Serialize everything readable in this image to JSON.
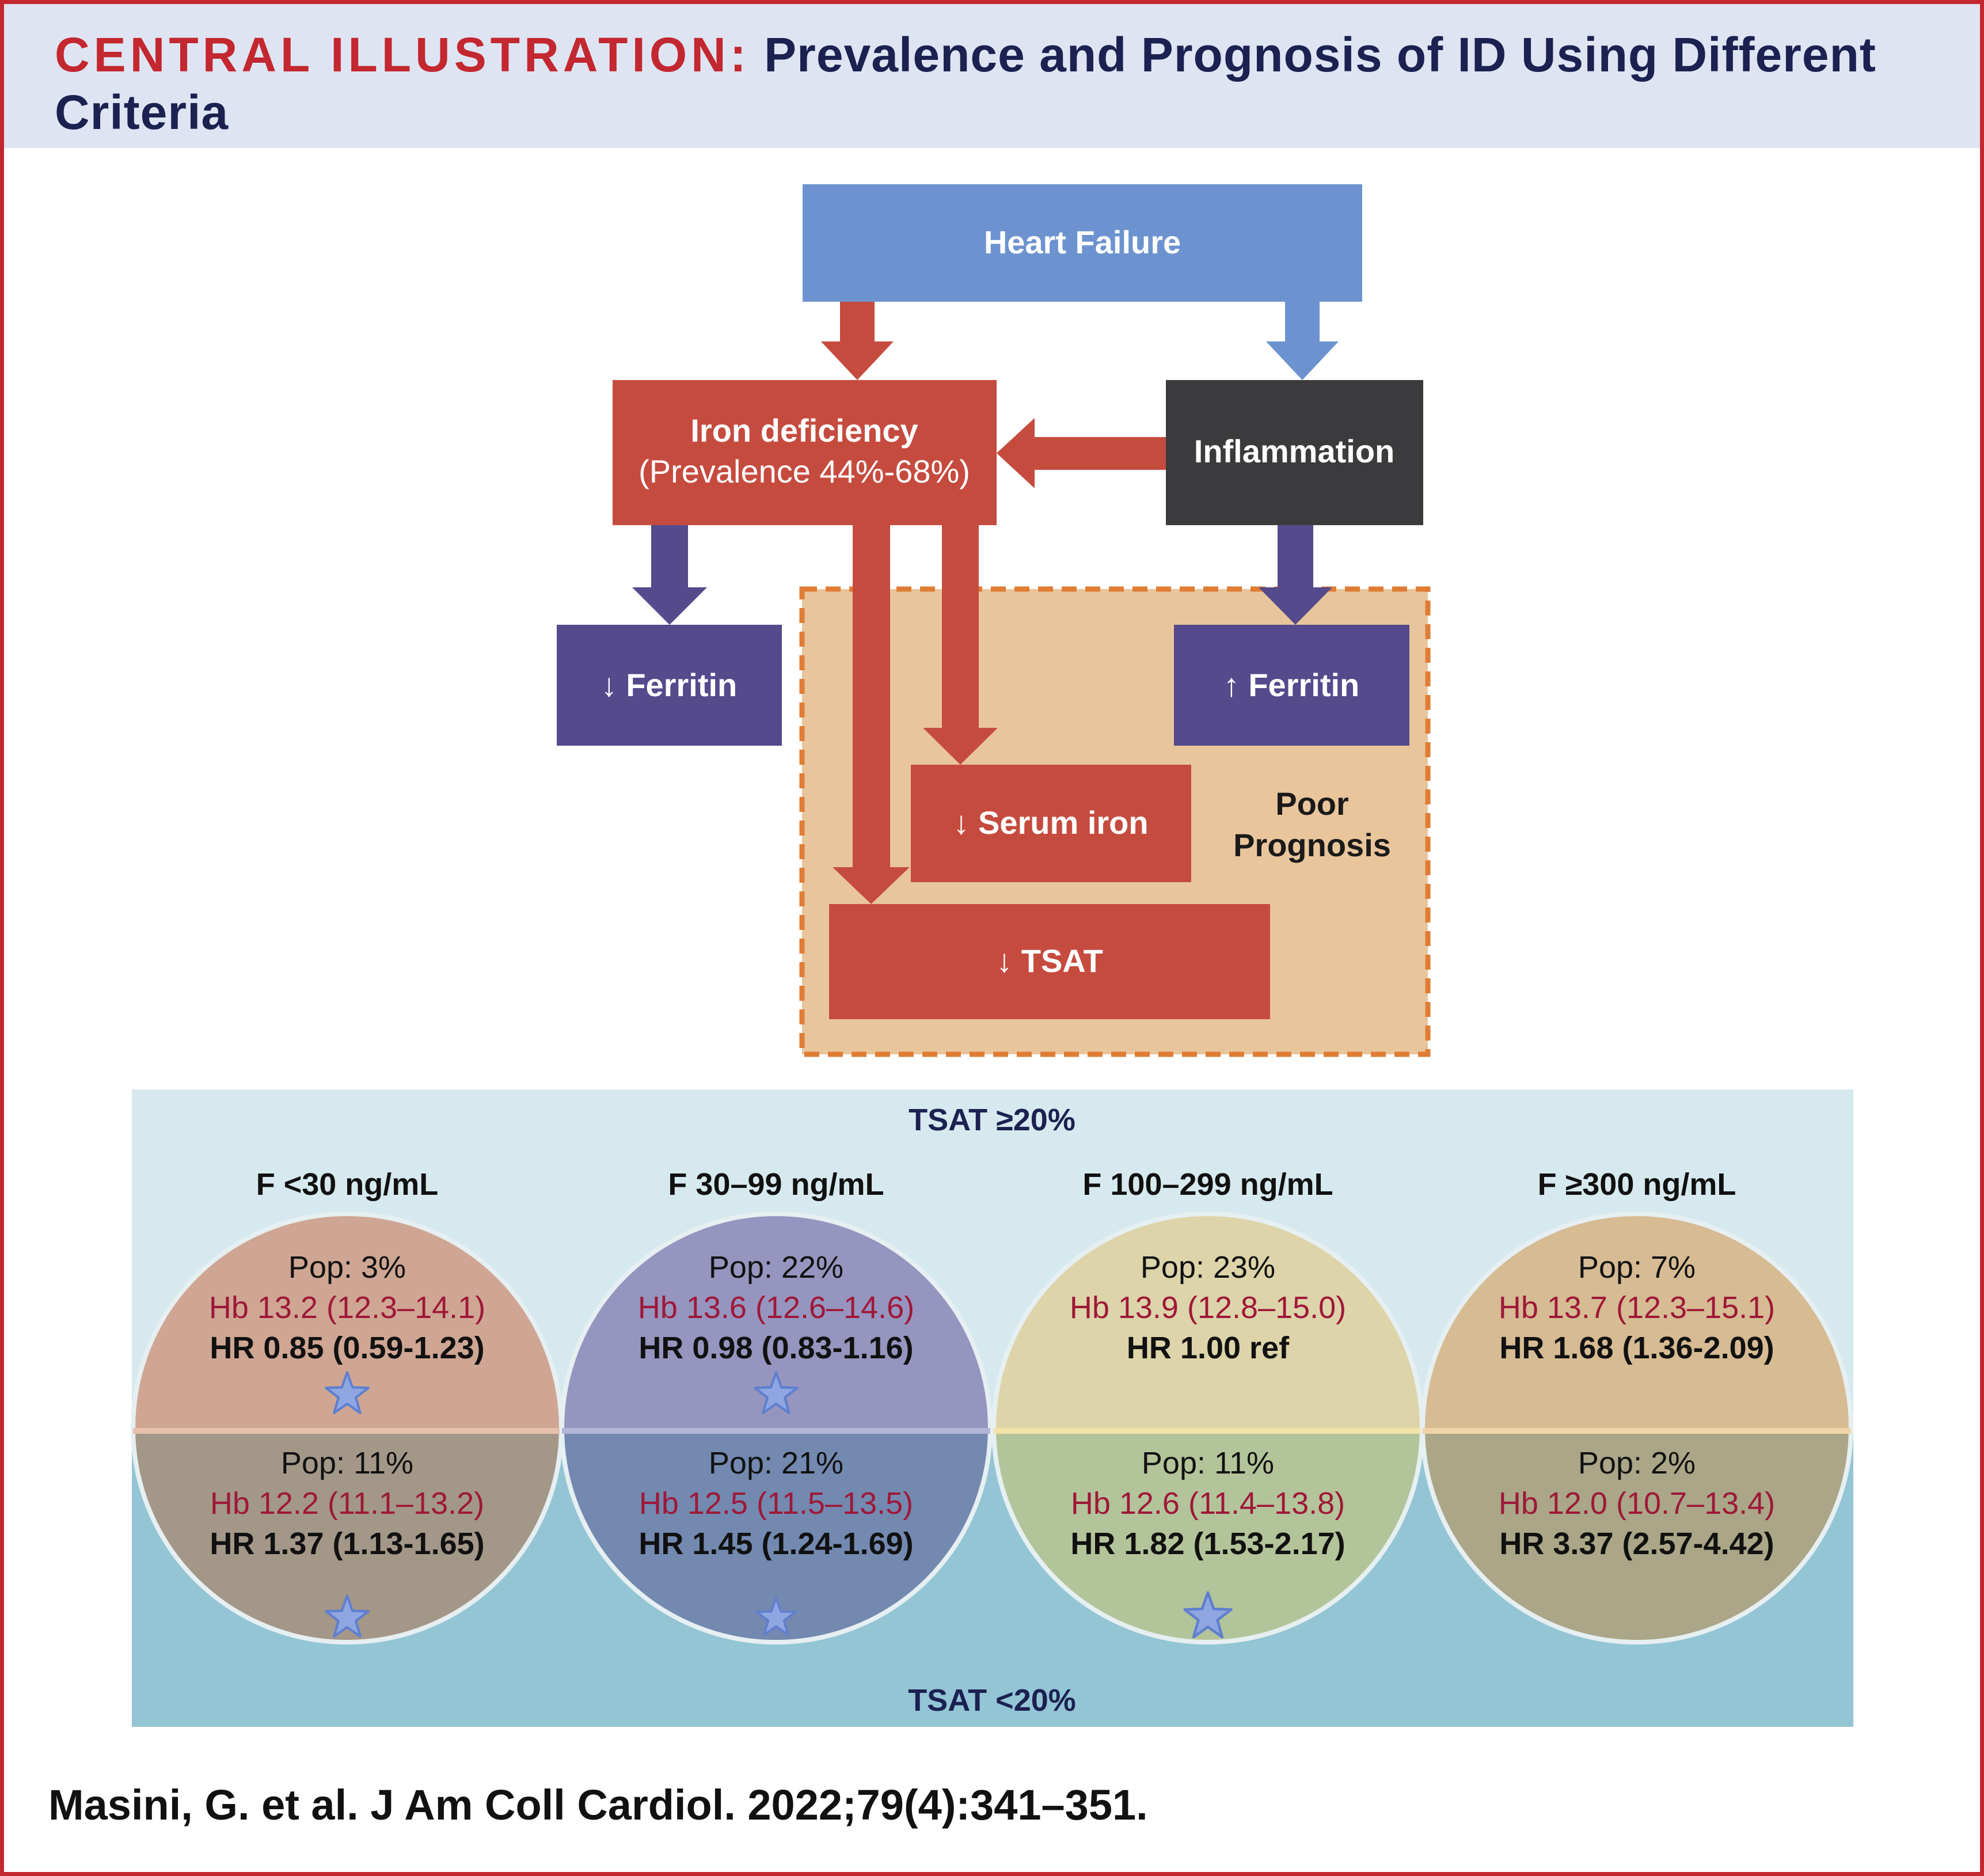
{
  "header": {
    "tag": "CENTRAL ILLUSTRATION:",
    "title_part1": "Prevalence and Prognosis of ID Using Different",
    "title_part2": "Criteria"
  },
  "flow": {
    "heart_failure": "Heart Failure",
    "iron_deficiency": "Iron deficiency",
    "prevalence": "(Prevalence 44%-68%)",
    "inflammation": "Inflammation",
    "low_ferritin": "↓ Ferritin",
    "high_ferritin": "↑ Ferritin",
    "serum_iron": "↓ Serum iron",
    "tsat": "↓ TSAT",
    "poor_prognosis_1": "Poor",
    "poor_prognosis_2": "Prognosis"
  },
  "grid": {
    "tsat_high_label": "TSAT ≥20%",
    "tsat_low_label": "TSAT <20%",
    "groups": [
      {
        "label": "F <30 ng/mL",
        "top": {
          "pop": "Pop: 3%",
          "hb": "Hb 13.2 (12.3–14.1)",
          "hr": "HR 0.85 (0.59-1.23)",
          "star": true
        },
        "bottom": {
          "pop": "Pop: 11%",
          "hb": "Hb 12.2 (11.1–13.2)",
          "hr": "HR 1.37 (1.13-1.65)",
          "star": true
        }
      },
      {
        "label": "F 30–99 ng/mL",
        "top": {
          "pop": "Pop: 22%",
          "hb": "Hb 13.6 (12.6–14.6)",
          "hr": "HR 0.98 (0.83-1.16)",
          "star": true
        },
        "bottom": {
          "pop": "Pop: 21%",
          "hb": "Hb 12.5 (11.5–13.5)",
          "hr": "HR 1.45 (1.24-1.69)",
          "star": true
        }
      },
      {
        "label": "F 100–299 ng/mL",
        "top": {
          "pop": "Pop: 23%",
          "hb": "Hb 13.9 (12.8–15.0)",
          "hr": "HR 1.00 ref",
          "star": false
        },
        "bottom": {
          "pop": "Pop: 11%",
          "hb": "Hb 12.6 (11.4–13.8)",
          "hr": "HR 1.82 (1.53-2.17)",
          "star": true
        }
      },
      {
        "label": "F ≥300 ng/mL",
        "top": {
          "pop": "Pop: 7%",
          "hb": "Hb 13.7 (12.3–15.1)",
          "hr": "HR 1.68 (1.36-2.09)",
          "star": false
        },
        "bottom": {
          "pop": "Pop: 2%",
          "hb": "Hb 12.0 (10.7–13.4)",
          "hr": "HR 3.37 (2.57-4.42)",
          "star": false
        }
      }
    ]
  },
  "colors": {
    "brand_red": "#c3272f",
    "navy": "#1b2150",
    "hf_blue": "#6c93cf",
    "iron_red": "#c64b3f",
    "inflammation": "#3b3b3d",
    "ferritin_purple": "#544a8c",
    "prognosis_fill": "#e9c59c",
    "prognosis_border": "#df7d35",
    "hb_text": "#9e1838"
  },
  "citation": "Masini, G. et al. J Am Coll Cardiol. 2022;79(4):341–351."
}
